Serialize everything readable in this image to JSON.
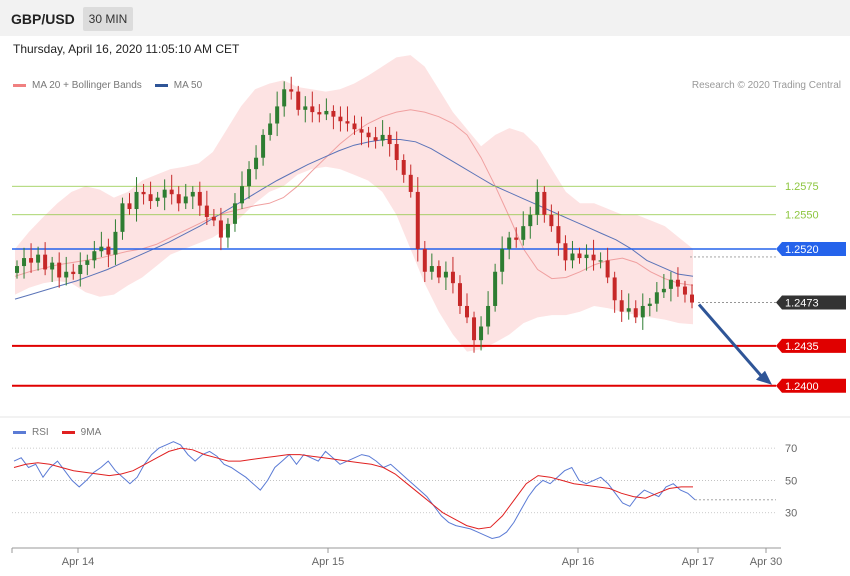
{
  "header": {
    "symbol": "GBP/USD",
    "timeframe": "30 MIN"
  },
  "datetime": "Thursday, April 16, 2020 11:05:10 AM CET",
  "legend_main": [
    {
      "label": "MA 20 + Bollinger Bands",
      "color": "#f08080"
    },
    {
      "label": "MA 50",
      "color": "#2f5597"
    }
  ],
  "legend_rsi": [
    {
      "label": "RSI",
      "color": "#5b7bd5"
    },
    {
      "label": "9MA",
      "color": "#e02020"
    }
  ],
  "copyright": "Research © 2020 Trading Central",
  "colors": {
    "up": "#2e7d32",
    "down": "#c62828",
    "resistance": "#8dc63f",
    "pivot": "#2563eb",
    "support": "#e00000",
    "arrow": "#2f5597"
  },
  "chart_data": [
    {
      "type": "candlestick",
      "title": "GBP/USD 30 MIN",
      "x_ticks": [
        "Apr 14",
        "Apr 15",
        "Apr 16",
        "Apr 17",
        "Apr 30"
      ],
      "ylim": [
        1.237,
        1.2655
      ],
      "levels": [
        {
          "value": 1.2575,
          "label": "1.2575",
          "kind": "resistance"
        },
        {
          "value": 1.255,
          "label": "1.2550",
          "kind": "resistance"
        },
        {
          "value": 1.252,
          "label": "1.2520",
          "kind": "pivot"
        },
        {
          "value": 1.2473,
          "label": "1.2473",
          "kind": "current"
        },
        {
          "value": 1.2435,
          "label": "1.2435",
          "kind": "support"
        },
        {
          "value": 1.24,
          "label": "1.2400",
          "kind": "support"
        }
      ],
      "close_series": [
        1.2505,
        1.2512,
        1.2508,
        1.2515,
        1.2502,
        1.2508,
        1.2495,
        1.25,
        1.2498,
        1.2506,
        1.251,
        1.2518,
        1.2522,
        1.2515,
        1.2535,
        1.256,
        1.2555,
        1.257,
        1.2568,
        1.2562,
        1.2565,
        1.2572,
        1.2568,
        1.256,
        1.2566,
        1.257,
        1.2558,
        1.2548,
        1.2545,
        1.253,
        1.2542,
        1.256,
        1.2575,
        1.259,
        1.26,
        1.262,
        1.263,
        1.2645,
        1.266,
        1.2658,
        1.2642,
        1.2645,
        1.264,
        1.2638,
        1.2641,
        1.2636,
        1.2632,
        1.263,
        1.2625,
        1.2622,
        1.2618,
        1.2615,
        1.262,
        1.2612,
        1.2598,
        1.2585,
        1.257,
        1.252,
        1.25,
        1.2505,
        1.2495,
        1.25,
        1.249,
        1.247,
        1.246,
        1.244,
        1.2452,
        1.247,
        1.25,
        1.252,
        1.253,
        1.2528,
        1.254,
        1.255,
        1.257,
        1.255,
        1.254,
        1.2525,
        1.251,
        1.2516,
        1.2512,
        1.2515,
        1.251,
        1.251,
        1.2495,
        1.2475,
        1.2465,
        1.2468,
        1.246,
        1.247,
        1.2472,
        1.2482,
        1.2485,
        1.2493,
        1.2487,
        1.248,
        1.2473
      ],
      "ma20": [
        1.2496,
        1.25,
        1.2503,
        1.2506,
        1.2508,
        1.251,
        1.2512,
        1.2515,
        1.2518,
        1.252,
        1.2524,
        1.253,
        1.2536,
        1.2542,
        1.2548,
        1.2552,
        1.2555,
        1.2558,
        1.256,
        1.2565,
        1.2575,
        1.2588,
        1.26,
        1.2612,
        1.2622,
        1.263,
        1.2636,
        1.264,
        1.2642,
        1.264,
        1.2636,
        1.263,
        1.262,
        1.26,
        1.2575,
        1.2548,
        1.252,
        1.2502,
        1.2494,
        1.2495,
        1.25,
        1.2506,
        1.251,
        1.2512,
        1.2508,
        1.25,
        1.2494,
        1.249,
        1.2488
      ],
      "bb_upper": [
        1.252,
        1.2535,
        1.2548,
        1.256,
        1.257,
        1.2575,
        1.2572,
        1.2565,
        1.257,
        1.258,
        1.2585,
        1.259,
        1.2592,
        1.2595,
        1.2605,
        1.2625,
        1.2645,
        1.266,
        1.2665,
        1.2668,
        1.2662,
        1.266,
        1.2658,
        1.266,
        1.2665,
        1.2672,
        1.268,
        1.2688,
        1.269,
        1.268,
        1.266,
        1.264,
        1.2625,
        1.261,
        1.262,
        1.2626,
        1.2622,
        1.261,
        1.259,
        1.257,
        1.256,
        1.256,
        1.2555,
        1.255,
        1.255,
        1.2545,
        1.254,
        1.253,
        1.252
      ],
      "bb_lower": [
        1.248,
        1.2486,
        1.249,
        1.2492,
        1.249,
        1.2482,
        1.2478,
        1.248,
        1.2488,
        1.2495,
        1.2505,
        1.2515,
        1.252,
        1.2525,
        1.253,
        1.2538,
        1.2548,
        1.256,
        1.257,
        1.2575,
        1.2585,
        1.259,
        1.2592,
        1.259,
        1.2585,
        1.258,
        1.257,
        1.255,
        1.252,
        1.249,
        1.2465,
        1.2445,
        1.243,
        1.2432,
        1.2438,
        1.2445,
        1.2455,
        1.246,
        1.2462,
        1.2462,
        1.2465,
        1.247,
        1.2468,
        1.2465,
        1.2462,
        1.246,
        1.2458,
        1.2455,
        1.2454
      ],
      "ma50": [
        1.2476,
        1.248,
        1.2484,
        1.2488,
        1.2492,
        1.2497,
        1.2502,
        1.2508,
        1.2514,
        1.252,
        1.2526,
        1.2533,
        1.254,
        1.2548,
        1.2556,
        1.2564,
        1.2572,
        1.258,
        1.2587,
        1.2594,
        1.26,
        1.2606,
        1.2611,
        1.2614,
        1.2616,
        1.2616,
        1.2614,
        1.2608,
        1.26,
        1.2592,
        1.2584,
        1.2576,
        1.257,
        1.2564,
        1.2558,
        1.2552,
        1.2546,
        1.254,
        1.2534,
        1.2528,
        1.252,
        1.251,
        1.2504,
        1.2498,
        1.2496
      ],
      "projection": {
        "from": 1.2473,
        "to": 1.24
      }
    },
    {
      "type": "line",
      "title": "RSI",
      "y_ticks": [
        70,
        50,
        30
      ],
      "ylim": [
        10,
        80
      ],
      "series": [
        {
          "name": "RSI",
          "values": [
            62,
            64,
            58,
            60,
            52,
            58,
            62,
            56,
            50,
            46,
            50,
            55,
            58,
            62,
            56,
            52,
            48,
            52,
            60,
            66,
            70,
            72,
            74,
            72,
            66,
            62,
            66,
            68,
            65,
            60,
            58,
            55,
            52,
            48,
            44,
            50,
            58,
            62,
            66,
            60,
            66,
            64,
            62,
            68,
            64,
            60,
            62,
            64,
            66,
            65,
            62,
            58,
            60,
            56,
            52,
            48,
            44,
            40,
            34,
            28,
            24,
            22,
            21,
            20,
            18,
            16,
            14,
            15,
            18,
            24,
            32,
            40,
            46,
            50,
            48,
            52,
            56,
            58,
            50,
            48,
            50,
            52,
            48,
            42,
            36,
            34,
            40,
            44,
            42,
            40,
            46,
            48,
            44,
            42,
            38
          ]
        },
        {
          "name": "9MA",
          "values": [
            58,
            60,
            61,
            60,
            58,
            56,
            55,
            54,
            53,
            54,
            56,
            60,
            64,
            68,
            70,
            69,
            66,
            64,
            62,
            62,
            63,
            64,
            65,
            66,
            66,
            65,
            64,
            63,
            62,
            61,
            60,
            58,
            54,
            48,
            42,
            36,
            30,
            26,
            22,
            20,
            21,
            28,
            38,
            48,
            53,
            52,
            50,
            48,
            47,
            46,
            45,
            42,
            40,
            39,
            42,
            45,
            46,
            46
          ]
        }
      ]
    }
  ]
}
